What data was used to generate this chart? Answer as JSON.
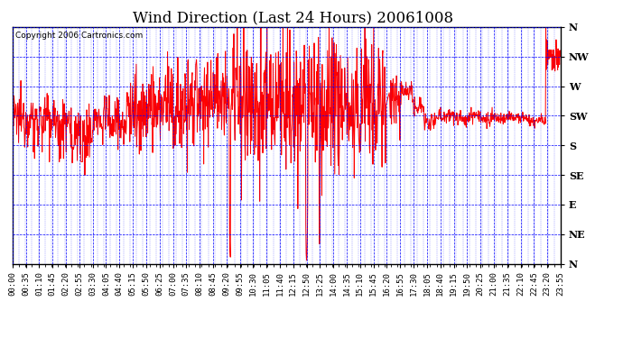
{
  "title": "Wind Direction (Last 24 Hours) 20061008",
  "copyright_text": "Copyright 2006 Cartronics.com",
  "background_color": "#ffffff",
  "plot_bg_color": "#ffffff",
  "grid_color": "#0000ff",
  "line_color": "#ff0000",
  "y_labels": [
    "N",
    "NW",
    "W",
    "SW",
    "S",
    "SE",
    "E",
    "NE",
    "N"
  ],
  "ytick_positions": [
    360,
    315,
    270,
    225,
    180,
    135,
    90,
    45,
    0
  ],
  "ylim": [
    0,
    360
  ],
  "x_tick_labels": [
    "00:00",
    "00:35",
    "01:10",
    "01:45",
    "02:20",
    "02:55",
    "03:30",
    "04:05",
    "04:40",
    "05:15",
    "05:50",
    "06:25",
    "07:00",
    "07:35",
    "08:10",
    "08:45",
    "09:20",
    "09:55",
    "10:30",
    "11:05",
    "11:40",
    "12:15",
    "12:50",
    "13:25",
    "14:00",
    "14:35",
    "15:10",
    "15:45",
    "16:20",
    "16:55",
    "17:30",
    "18:05",
    "18:40",
    "19:15",
    "19:50",
    "20:25",
    "21:00",
    "21:35",
    "22:10",
    "22:45",
    "23:20",
    "23:55"
  ],
  "title_fontsize": 12,
  "axis_label_fontsize": 6.5,
  "copyright_fontsize": 6.5,
  "line_width": 0.7
}
